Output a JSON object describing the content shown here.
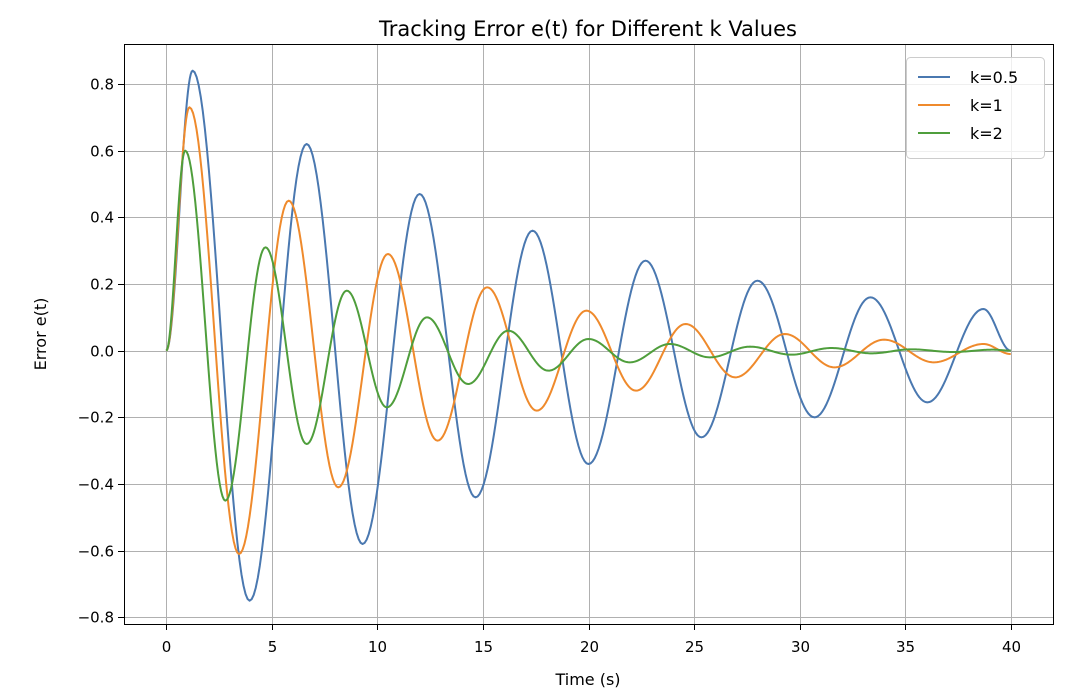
{
  "chart_data": {
    "type": "line",
    "title": "Tracking Error e(t) for Different k Values",
    "xlabel": "Time (s)",
    "ylabel": "Error e(t)",
    "xlim": [
      -2,
      42
    ],
    "ylim": [
      -0.82,
      0.92
    ],
    "x_ticks": [
      0,
      5,
      10,
      15,
      20,
      25,
      30,
      35,
      40
    ],
    "x_tick_labels": [
      "0",
      "5",
      "10",
      "15",
      "20",
      "25",
      "30",
      "35",
      "40"
    ],
    "y_ticks": [
      -0.8,
      -0.6,
      -0.4,
      -0.2,
      0.0,
      0.2,
      0.4,
      0.6,
      0.8
    ],
    "y_tick_labels": [
      "−0.8",
      "−0.6",
      "−0.4",
      "−0.2",
      "0.0",
      "0.2",
      "0.4",
      "0.6",
      "0.8"
    ],
    "grid": true,
    "legend_position": "top-right",
    "series": [
      {
        "name": "k=0.5",
        "color": "#4a78b0",
        "points": [
          [
            0,
            0
          ],
          [
            1.25,
            0.84
          ],
          [
            3.95,
            -0.75
          ],
          [
            6.65,
            0.62
          ],
          [
            9.3,
            -0.58
          ],
          [
            12.0,
            0.47
          ],
          [
            14.65,
            -0.44
          ],
          [
            17.35,
            0.36
          ],
          [
            20.0,
            -0.34
          ],
          [
            22.7,
            0.27
          ],
          [
            25.35,
            -0.26
          ],
          [
            28.0,
            0.21
          ],
          [
            30.7,
            -0.2
          ],
          [
            33.35,
            0.16
          ],
          [
            36.05,
            -0.155
          ],
          [
            38.7,
            0.125
          ],
          [
            40.0,
            0.0
          ]
        ]
      },
      {
        "name": "k=1",
        "color": "#ef8a2c",
        "points": [
          [
            0,
            0
          ],
          [
            1.1,
            0.73
          ],
          [
            3.45,
            -0.61
          ],
          [
            5.8,
            0.45
          ],
          [
            8.15,
            -0.41
          ],
          [
            10.5,
            0.29
          ],
          [
            12.85,
            -0.27
          ],
          [
            15.2,
            0.19
          ],
          [
            17.55,
            -0.18
          ],
          [
            19.9,
            0.12
          ],
          [
            22.25,
            -0.12
          ],
          [
            24.6,
            0.08
          ],
          [
            26.95,
            -0.08
          ],
          [
            29.3,
            0.05
          ],
          [
            31.65,
            -0.05
          ],
          [
            34.0,
            0.033
          ],
          [
            36.35,
            -0.035
          ],
          [
            38.7,
            0.02
          ],
          [
            40.0,
            -0.01
          ]
        ]
      },
      {
        "name": "k=2",
        "color": "#4f9e3c",
        "points": [
          [
            0,
            0
          ],
          [
            0.9,
            0.6
          ],
          [
            2.8,
            -0.45
          ],
          [
            4.7,
            0.31
          ],
          [
            6.65,
            -0.28
          ],
          [
            8.55,
            0.18
          ],
          [
            10.45,
            -0.17
          ],
          [
            12.35,
            0.1
          ],
          [
            14.3,
            -0.1
          ],
          [
            16.2,
            0.06
          ],
          [
            18.1,
            -0.06
          ],
          [
            20.0,
            0.035
          ],
          [
            21.95,
            -0.035
          ],
          [
            23.85,
            0.02
          ],
          [
            25.75,
            -0.02
          ],
          [
            27.65,
            0.012
          ],
          [
            29.6,
            -0.012
          ],
          [
            31.5,
            0.008
          ],
          [
            33.4,
            -0.008
          ],
          [
            35.3,
            0.004
          ],
          [
            37.25,
            -0.004
          ],
          [
            39.15,
            0.003
          ],
          [
            40.0,
            0.0
          ]
        ]
      }
    ]
  }
}
